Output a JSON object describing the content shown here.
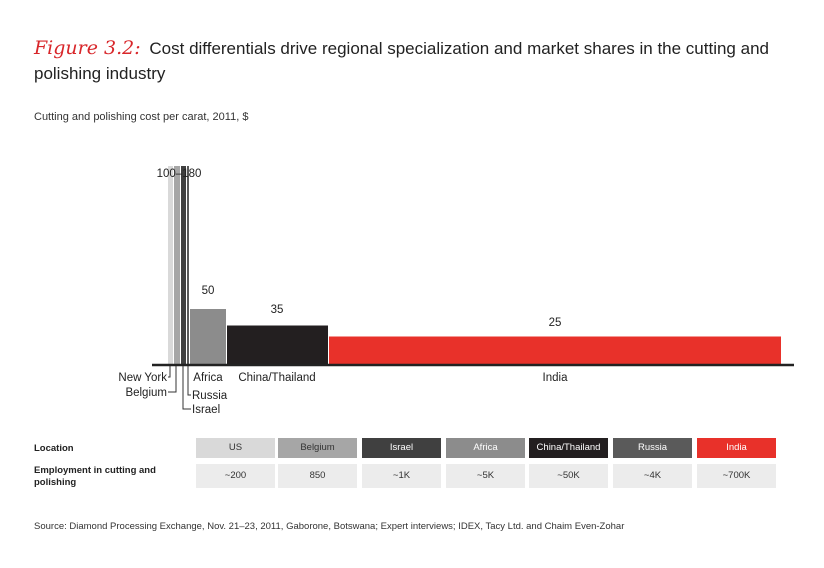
{
  "title": {
    "figure_label": "Figure 3.2:",
    "text": "Cost differentials drive regional specialization and market shares in the cutting and polishing industry"
  },
  "subtitle": "Cutting and polishing cost per carat, 2011, $",
  "chart_data": {
    "type": "bar",
    "title": "Cutting and polishing cost per carat, 2011, $",
    "bars": [
      {
        "label": "New York",
        "value": 180,
        "color": "#d9d9d9",
        "employment_share": 200
      },
      {
        "label": "Belgium",
        "value": 180,
        "color": "#a6a6a6",
        "employment_share": 850
      },
      {
        "label": "Israel",
        "value": 180,
        "color": "#404040",
        "employment_share": 1000
      },
      {
        "label": "Russia",
        "value": 180,
        "color": "#5a5a5a",
        "employment_share": 4000
      },
      {
        "label": "Africa",
        "value": 50,
        "color": "#8c8c8c",
        "employment_share": 5000
      },
      {
        "label": "China/Thailand",
        "value": 35,
        "color": "#231f20",
        "employment_share": 50000
      },
      {
        "label": "India",
        "value": 25,
        "color": "#e8312a",
        "employment_share": 700000
      }
    ],
    "value_labels": [
      "100–180",
      "50",
      "35",
      "25"
    ],
    "ylim": [
      0,
      200
    ],
    "x_is_employment_width": true
  },
  "table": {
    "row_labels": [
      "Location",
      "Employment in cutting and polishing"
    ],
    "locations": [
      {
        "name": "US",
        "bg": "#d9d9d9",
        "fg": "#333333",
        "employment": "~200"
      },
      {
        "name": "Belgium",
        "bg": "#a6a6a6",
        "fg": "#333333",
        "employment": "850"
      },
      {
        "name": "Israel",
        "bg": "#404040",
        "fg": "#ffffff",
        "employment": "~1K"
      },
      {
        "name": "Africa",
        "bg": "#8c8c8c",
        "fg": "#ffffff",
        "employment": "~5K"
      },
      {
        "name": "China/Thailand",
        "bg": "#231f20",
        "fg": "#ffffff",
        "employment": "~50K"
      },
      {
        "name": "Russia",
        "bg": "#5a5a5a",
        "fg": "#ffffff",
        "employment": "~4K"
      },
      {
        "name": "India",
        "bg": "#e8312a",
        "fg": "#ffffff",
        "employment": "~700K"
      }
    ]
  },
  "source": "Source:  Diamond Processing Exchange, Nov. 21–23, 2011, Gaborone, Botswana; Expert interviews; IDEX, Tacy Ltd. and Chaim Even-Zohar"
}
